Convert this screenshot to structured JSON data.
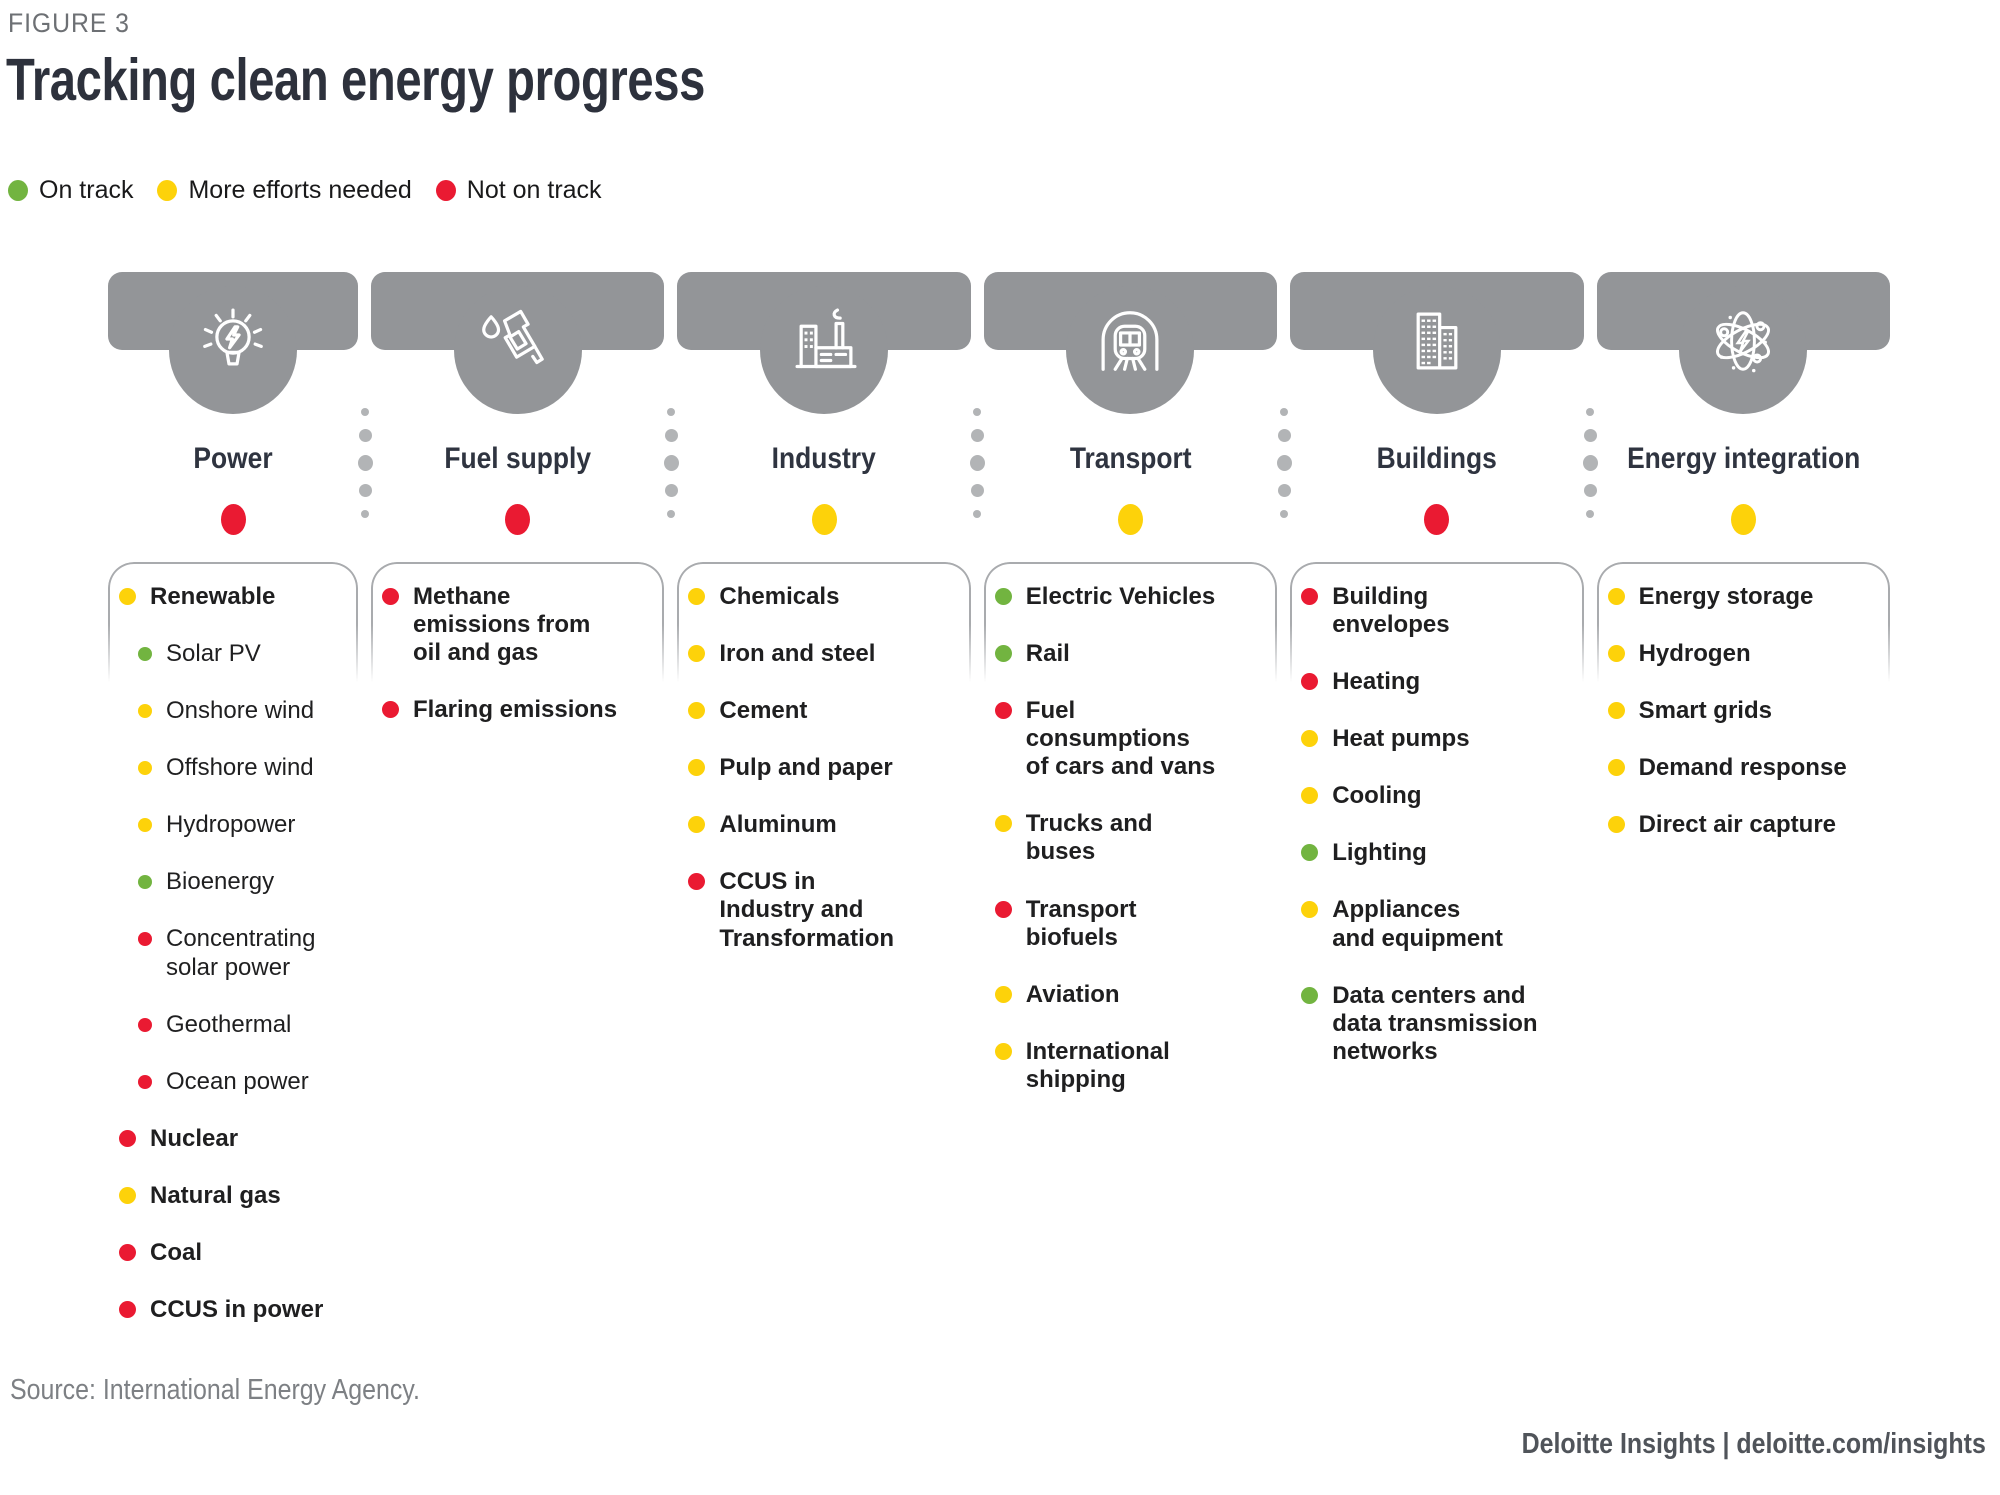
{
  "figure_label": "FIGURE 3",
  "title": "Tracking clean energy progress",
  "legend": [
    {
      "label": "On track",
      "status": "green"
    },
    {
      "label": "More efforts needed",
      "status": "yellow"
    },
    {
      "label": "Not on track",
      "status": "red"
    }
  ],
  "status_colors": {
    "green": "#72b440",
    "yellow": "#fdd20a",
    "red": "#ea1a32"
  },
  "columns": [
    {
      "label": "Power",
      "icon": "power-lightbulb-icon",
      "status": "red",
      "items": [
        {
          "label": "Renewable",
          "status": "yellow",
          "level": 0
        },
        {
          "label": "Solar PV",
          "status": "green",
          "level": 1
        },
        {
          "label": "Onshore wind",
          "status": "yellow",
          "level": 1
        },
        {
          "label": "Offshore wind",
          "status": "yellow",
          "level": 1
        },
        {
          "label": "Hydropower",
          "status": "yellow",
          "level": 1
        },
        {
          "label": "Bioenergy",
          "status": "green",
          "level": 1
        },
        {
          "label": "Concentrating\nsolar power",
          "status": "red",
          "level": 1
        },
        {
          "label": "Geothermal",
          "status": "red",
          "level": 1
        },
        {
          "label": "Ocean power",
          "status": "red",
          "level": 1
        },
        {
          "label": "Nuclear",
          "status": "red",
          "level": 0
        },
        {
          "label": "Natural gas",
          "status": "yellow",
          "level": 0
        },
        {
          "label": "Coal",
          "status": "red",
          "level": 0
        },
        {
          "label": "CCUS in power",
          "status": "red",
          "level": 0
        }
      ]
    },
    {
      "label": "Fuel supply",
      "icon": "fuel-nozzle-icon",
      "status": "red",
      "items": [
        {
          "label": "Methane\nemissions from\noil and gas",
          "status": "red",
          "level": 0
        },
        {
          "label": "Flaring emissions",
          "status": "red",
          "level": 0
        }
      ]
    },
    {
      "label": "Industry",
      "icon": "industry-factory-icon",
      "status": "yellow",
      "items": [
        {
          "label": "Chemicals",
          "status": "yellow",
          "level": 0
        },
        {
          "label": "Iron and steel",
          "status": "yellow",
          "level": 0
        },
        {
          "label": "Cement",
          "status": "yellow",
          "level": 0
        },
        {
          "label": "Pulp and paper",
          "status": "yellow",
          "level": 0
        },
        {
          "label": "Aluminum",
          "status": "yellow",
          "level": 0
        },
        {
          "label": "CCUS in\nIndustry and\nTransformation",
          "status": "red",
          "level": 0
        }
      ]
    },
    {
      "label": "Transport",
      "icon": "transport-train-icon",
      "status": "yellow",
      "items": [
        {
          "label": "Electric Vehicles",
          "status": "green",
          "level": 0
        },
        {
          "label": "Rail",
          "status": "green",
          "level": 0
        },
        {
          "label": "Fuel\nconsumptions\nof cars and vans",
          "status": "red",
          "level": 0
        },
        {
          "label": "Trucks and\nbuses",
          "status": "yellow",
          "level": 0
        },
        {
          "label": "Transport\nbiofuels",
          "status": "red",
          "level": 0
        },
        {
          "label": "Aviation",
          "status": "yellow",
          "level": 0
        },
        {
          "label": "International\nshipping",
          "status": "yellow",
          "level": 0
        }
      ]
    },
    {
      "label": "Buildings",
      "icon": "buildings-towers-icon",
      "status": "red",
      "items": [
        {
          "label": "Building\nenvelopes",
          "status": "red",
          "level": 0
        },
        {
          "label": "Heating",
          "status": "red",
          "level": 0
        },
        {
          "label": "Heat pumps",
          "status": "yellow",
          "level": 0
        },
        {
          "label": "Cooling",
          "status": "yellow",
          "level": 0
        },
        {
          "label": "Lighting",
          "status": "green",
          "level": 0
        },
        {
          "label": "Appliances\nand equipment",
          "status": "yellow",
          "level": 0
        },
        {
          "label": "Data centers and\ndata transmission\nnetworks",
          "status": "green",
          "level": 0
        }
      ]
    },
    {
      "label": "Energy integration",
      "icon": "energy-atom-icon",
      "status": "yellow",
      "items": [
        {
          "label": "Energy storage",
          "status": "yellow",
          "level": 0
        },
        {
          "label": "Hydrogen",
          "status": "yellow",
          "level": 0
        },
        {
          "label": "Smart grids",
          "status": "yellow",
          "level": 0
        },
        {
          "label": "Demand response",
          "status": "yellow",
          "level": 0
        },
        {
          "label": "Direct air capture",
          "status": "yellow",
          "level": 0
        }
      ]
    }
  ],
  "source": "Source: International Energy Agency.",
  "footer": "Deloitte Insights | deloitte.com/insights"
}
